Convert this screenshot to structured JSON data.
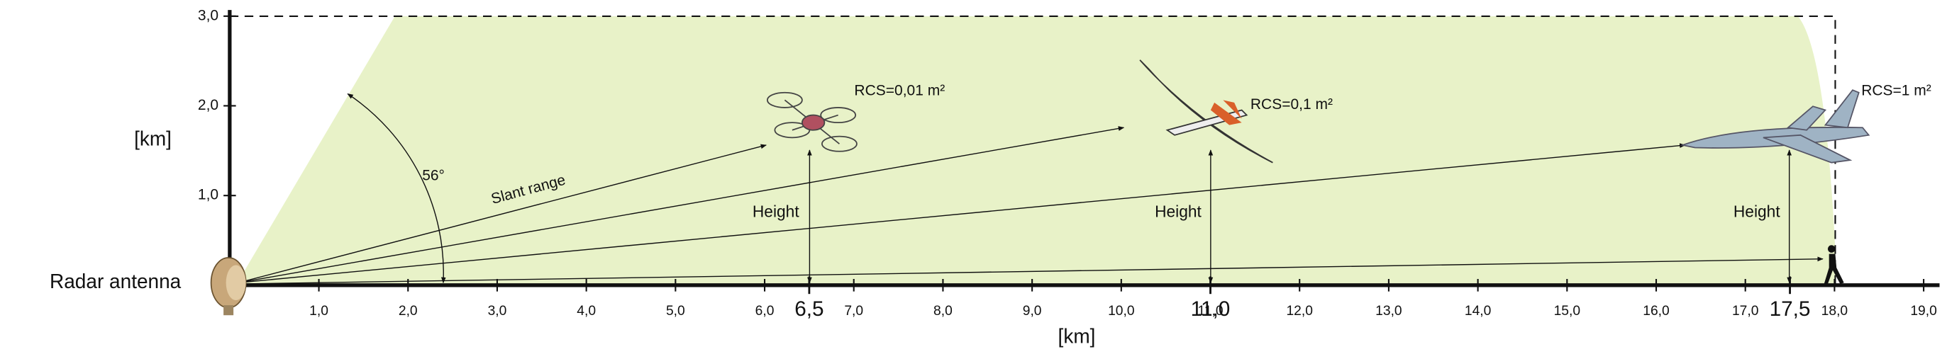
{
  "x_axis": {
    "ticks": [
      "1,0",
      "2,0",
      "3,0",
      "4,0",
      "5,0",
      "6,0",
      "7,0",
      "8,0",
      "9,0",
      "10,0",
      "11,0",
      "12,0",
      "13,0",
      "14,0",
      "15,0",
      "16,0",
      "17,0",
      "18,0",
      "19,0"
    ],
    "highlight_ticks": [
      "6,5",
      "11,0",
      "17,5"
    ],
    "label": "[km]"
  },
  "y_axis": {
    "ticks": [
      "1,0",
      "2,0",
      "3,0"
    ],
    "label": "[km]"
  },
  "radar": {
    "label": "Radar antenna"
  },
  "annotations": {
    "angle": "56°",
    "slant_range": "Slant range",
    "heights": [
      "Height",
      "Height",
      "Height"
    ]
  },
  "targets": [
    {
      "rcs": "RCS=0,01 m²"
    },
    {
      "rcs": "RCS=0,1 m²"
    },
    {
      "rcs": "RCS=1 m²"
    }
  ]
}
